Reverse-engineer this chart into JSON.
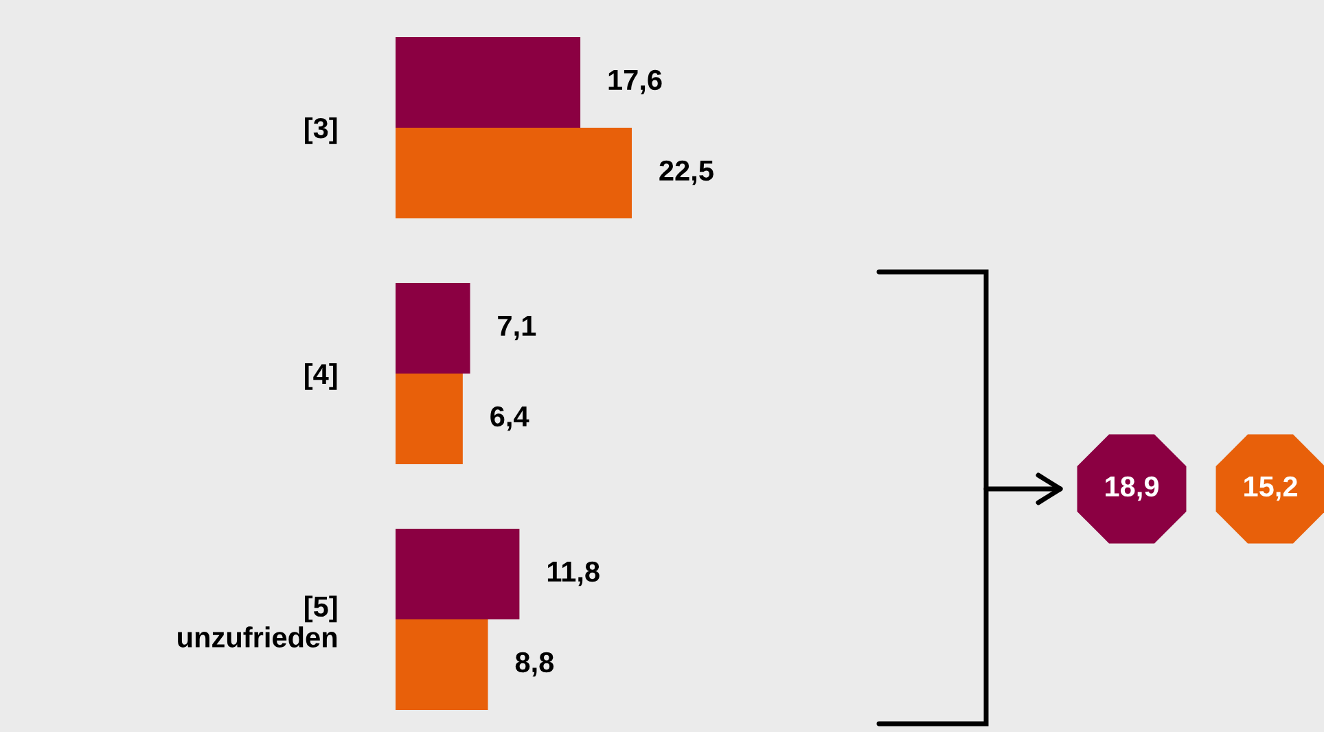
{
  "chart_data": {
    "type": "bar",
    "orientation": "horizontal",
    "categories": [
      "[3]",
      "[4]",
      "[5]\nunzufrieden"
    ],
    "series": [
      {
        "color": "#8b0042",
        "values": [
          17.6,
          7.1,
          11.8
        ],
        "value_labels": [
          "17,6",
          "7,1",
          "11,8"
        ]
      },
      {
        "color": "#e8600a",
        "values": [
          22.5,
          6.4,
          8.8
        ],
        "value_labels": [
          "22,5",
          "6,4",
          "8,8"
        ]
      }
    ],
    "annotations": [
      "18,9",
      "15,2"
    ],
    "grid": false,
    "legend": false,
    "tick_labels": "y"
  }
}
